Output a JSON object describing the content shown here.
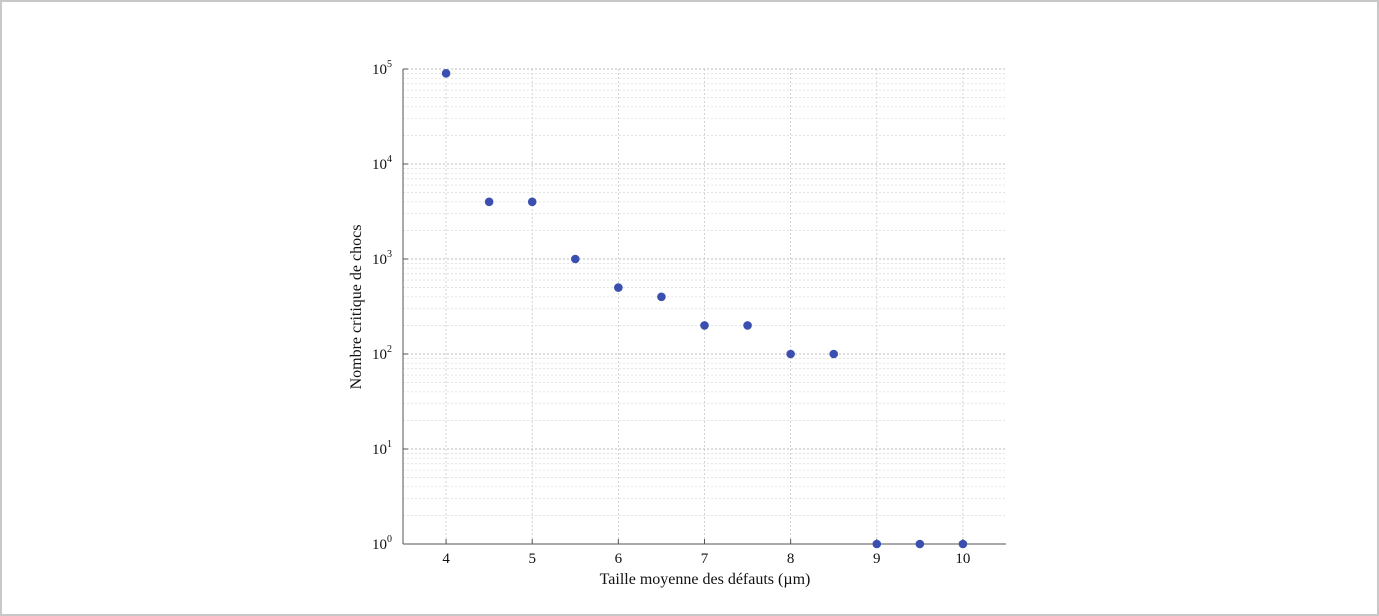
{
  "chart_data": {
    "type": "scatter",
    "title": "",
    "xlabel": "Taille moyenne des défauts (µm)",
    "ylabel": "Nombre critique de chocs",
    "xlim": [
      3.5,
      10.5
    ],
    "ylim": [
      1,
      100000
    ],
    "yscale": "log",
    "grid": true,
    "x_ticks": [
      4,
      5,
      6,
      7,
      8,
      9,
      10
    ],
    "x_tick_labels": [
      "4",
      "5",
      "6",
      "7",
      "8",
      "9",
      "10"
    ],
    "y_ticks": [
      1,
      10,
      100,
      1000,
      10000,
      100000
    ],
    "y_tick_base": "10",
    "y_tick_exponents": [
      "0",
      "1",
      "2",
      "3",
      "4",
      "5"
    ],
    "marker_color": "#3a4fb0",
    "series": [
      {
        "x": [
          4,
          4.5,
          5,
          5.5,
          6,
          6.5,
          7,
          7.5,
          8,
          8.5,
          9,
          9.5,
          10
        ],
        "y": [
          90000,
          4000,
          4000,
          1000,
          500,
          400,
          200,
          200,
          100,
          100,
          1,
          1,
          1
        ]
      }
    ]
  }
}
